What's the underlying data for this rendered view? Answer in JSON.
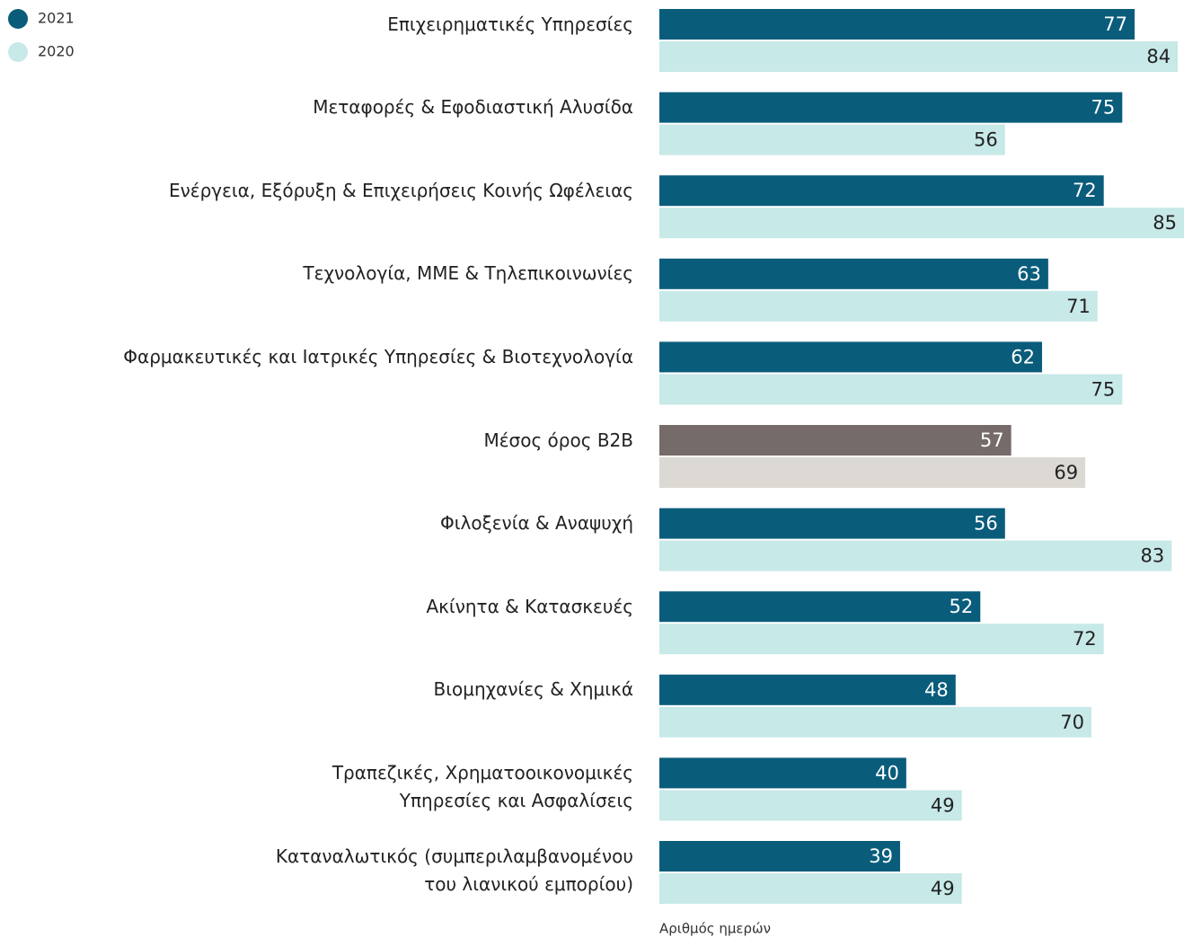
{
  "chart_data": {
    "type": "hbar",
    "categories": [
      "Επιχειρηματικές Υπηρεσίες",
      "Μεταφορές & Εφοδιαστική Αλυσίδα",
      "Ενέργεια, Εξόρυξη & Επιχειρήσεις Κοινής Ωφέλειας",
      "Τεχνολογία, ΜΜΕ & Τηλεπικοινωνίες",
      "Φαρμακευτικές και Ιατρικές Υπηρεσίες & Βιοτεχνολογία",
      "Μέσος όρος B2B",
      "Φιλοξενία & Αναψυχή",
      "Ακίνητα & Κατασκευές",
      "Βιομηχανίες & Χημικά",
      "Τραπεζικές, Χρηματοοικονομικές\nΥπηρεσίες και Ασφαλίσεις",
      "Καταναλωτικός (συμπεριλαμβανομένου\nτου λιανικού εμπορίου)"
    ],
    "series": [
      {
        "name": "2021",
        "color": "#0a5c7b",
        "label_color": "#ffffff",
        "colors": [
          "#0a5c7b",
          "#0a5c7b",
          "#0a5c7b",
          "#0a5c7b",
          "#0a5c7b",
          "#756b69",
          "#0a5c7b",
          "#0a5c7b",
          "#0a5c7b",
          "#0a5c7b",
          "#0a5c7b"
        ],
        "values": [
          77,
          75,
          72,
          63,
          62,
          57,
          56,
          52,
          48,
          40,
          39
        ]
      },
      {
        "name": "2020",
        "color": "#c7e9e8",
        "label_color": "#222222",
        "colors": [
          "#c7e9e8",
          "#c7e9e8",
          "#c7e9e8",
          "#c7e9e8",
          "#c7e9e8",
          "#dcd9d4",
          "#c7e9e8",
          "#c7e9e8",
          "#c7e9e8",
          "#c7e9e8",
          "#c7e9e8"
        ],
        "values": [
          84,
          56,
          85,
          71,
          75,
          69,
          83,
          72,
          70,
          49,
          49
        ]
      }
    ],
    "xlabel": "Αριθμός ημερών",
    "xlim": [
      0,
      85
    ]
  }
}
